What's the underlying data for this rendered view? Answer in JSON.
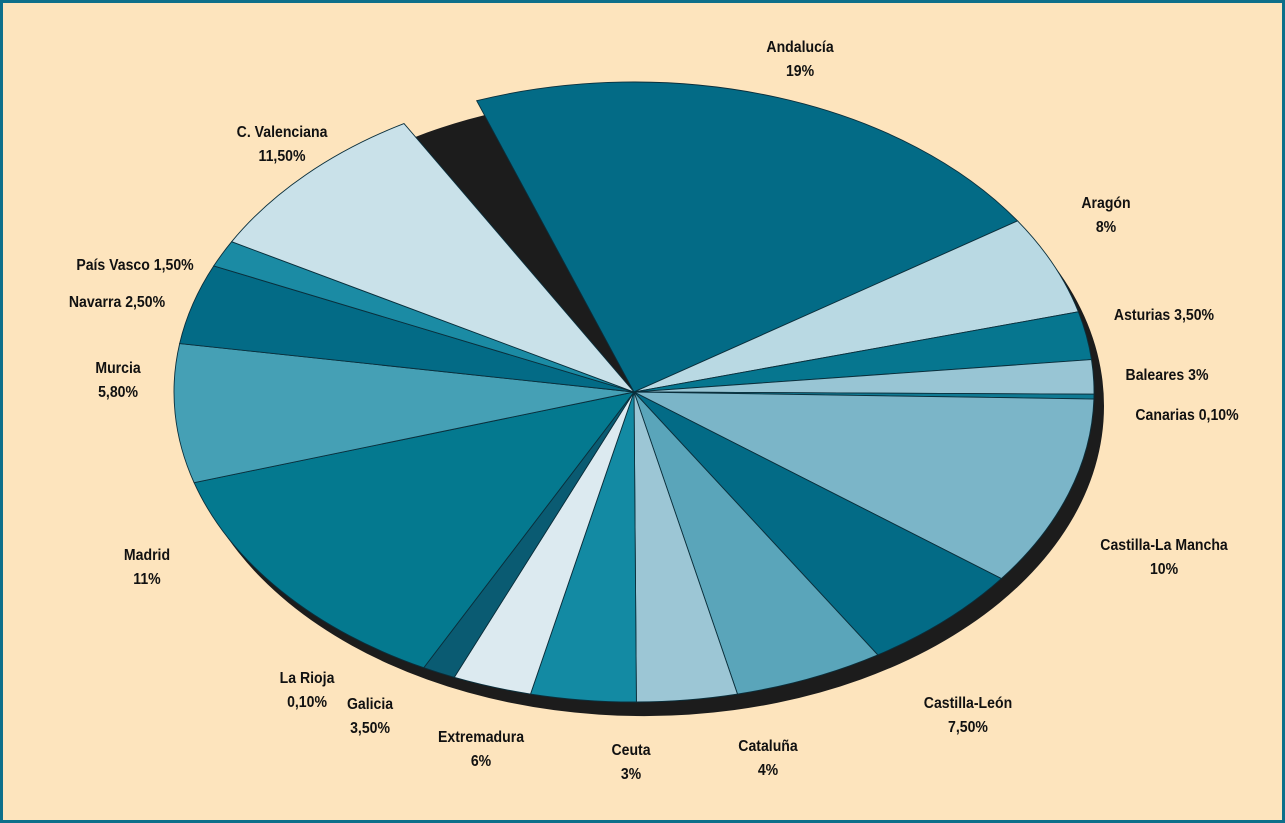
{
  "chart_data": {
    "type": "pie",
    "title": "",
    "slices": [
      {
        "label": "Andalucía",
        "value_text": "19%",
        "value": 19,
        "color": "#036b86"
      },
      {
        "label": "Aragón",
        "value_text": "8%",
        "value": 8,
        "color": "#b9d9e3"
      },
      {
        "label": "Asturias",
        "value_text": "3,50%",
        "value": 3.5,
        "color": "#06768f"
      },
      {
        "label": "Baleares",
        "value_text": "3%",
        "value": 3,
        "color": "#98c5d4"
      },
      {
        "label": "Canarias",
        "value_text": "0,10%",
        "value": 0.1,
        "color": "#0f7a93"
      },
      {
        "label": "Castilla-La Mancha",
        "value_text": "10%",
        "value": 10,
        "color": "#7bb5c8"
      },
      {
        "label": "Castilla-León",
        "value_text": "7,50%",
        "value": 7.5,
        "color": "#036b86"
      },
      {
        "label": "Cataluña",
        "value_text": "4%",
        "value": 4,
        "color": "#5aa5ba"
      },
      {
        "label": "Ceuta",
        "value_text": "3%",
        "value": 3,
        "color": "#9cc6d5"
      },
      {
        "label": "Extremadura",
        "value_text": "6%",
        "value": 6,
        "color": "#138aa3"
      },
      {
        "label": "Galicia",
        "value_text": "3,50%",
        "value": 3.5,
        "color": "#dceaf0"
      },
      {
        "label": "La Rioja",
        "value_text": "0,10%",
        "value": 0.1,
        "color": "#0a5b72"
      },
      {
        "label": "Madrid",
        "value_text": "11%",
        "value": 11,
        "color": "#04798f"
      },
      {
        "label": "Murcia",
        "value_text": "5,80%",
        "value": 5.8,
        "color": "#45a0b5"
      },
      {
        "label": "Navarra",
        "value_text": "2,50%",
        "value": 2.5,
        "color": "#036b86"
      },
      {
        "label": "País Vasco",
        "value_text": "1,50%",
        "value": 1.5,
        "color": "#1b8ba4"
      },
      {
        "label": "C. Valenciana",
        "value_text": "11,50%",
        "value": 11.5,
        "color": "#c9e1e9"
      }
    ]
  }
}
